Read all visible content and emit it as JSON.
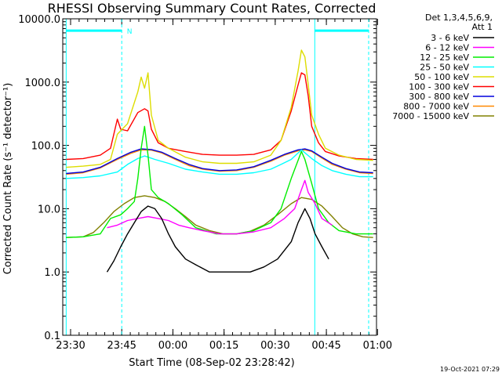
{
  "chart_data": {
    "type": "line",
    "title": "RHESSI Observing Summary Count Rates, Corrected",
    "xlabel": "Start Time (08-Sep-02 23:28:42)",
    "ylabel": "Corrected Count Rate (s⁻¹ detector⁻¹)",
    "yscale": "log",
    "ylim": [
      0.1,
      10000
    ],
    "xlim_minutes_from_start": [
      -1,
      91
    ],
    "xticks": [
      {
        "label": "23:30",
        "minutes": 1.3
      },
      {
        "label": "23:45",
        "minutes": 16.3
      },
      {
        "label": "00:00",
        "minutes": 31.3
      },
      {
        "label": "00:15",
        "minutes": 46.3
      },
      {
        "label": "00:30",
        "minutes": 61.3
      },
      {
        "label": "00:45",
        "minutes": 76.3
      },
      {
        "label": "01:00",
        "minutes": 91.3
      }
    ],
    "yticks": [
      "0.1",
      "1.0",
      "10.0",
      "100.0",
      "1000.0",
      "10000.0"
    ],
    "legend_header": [
      "Det 1,3,4,5,6,9,",
      "Att 1"
    ],
    "legend_position": "right",
    "annotations": [
      {
        "text": "N",
        "x_minutes": 17.8,
        "y": 6500
      }
    ],
    "night_bars": [
      {
        "from": 0,
        "to": 16.3
      },
      {
        "from": 72.9,
        "to": 88.7
      }
    ],
    "vertical_markers": [
      {
        "x_minutes": 0,
        "style": "solid"
      },
      {
        "x_minutes": 16.3,
        "style": "dashed"
      },
      {
        "x_minutes": 72.9,
        "style": "solid"
      },
      {
        "x_minutes": 88.7,
        "style": "dashed"
      }
    ],
    "series": [
      {
        "name": "3 - 6 keV",
        "color": "#000000",
        "points": [
          [
            12,
            1
          ],
          [
            14,
            1.5
          ],
          [
            16,
            2.5
          ],
          [
            18,
            4
          ],
          [
            20,
            6
          ],
          [
            22,
            9
          ],
          [
            24,
            11
          ],
          [
            26,
            10
          ],
          [
            28,
            7
          ],
          [
            30,
            4
          ],
          [
            32,
            2.5
          ],
          [
            35,
            1.6
          ],
          [
            38,
            1.3
          ],
          [
            42,
            1
          ],
          [
            48,
            1
          ],
          [
            54,
            1
          ],
          [
            58,
            1.2
          ],
          [
            62,
            1.6
          ],
          [
            66,
            3
          ],
          [
            68,
            6
          ],
          [
            70,
            10
          ],
          [
            71.5,
            7
          ],
          [
            73,
            4
          ],
          [
            75,
            2.5
          ],
          [
            77,
            1.6
          ]
        ]
      },
      {
        "name": "6 - 12 keV",
        "color": "#ff00ff",
        "points": [
          [
            12,
            5
          ],
          [
            15,
            5.5
          ],
          [
            18,
            6.5
          ],
          [
            21,
            7
          ],
          [
            24,
            7.5
          ],
          [
            27,
            7
          ],
          [
            30,
            6.5
          ],
          [
            33,
            5.5
          ],
          [
            36,
            5
          ],
          [
            40,
            4.5
          ],
          [
            45,
            4
          ],
          [
            50,
            4
          ],
          [
            55,
            4.3
          ],
          [
            60,
            5
          ],
          [
            64,
            7
          ],
          [
            67,
            10
          ],
          [
            69,
            20
          ],
          [
            70,
            28
          ],
          [
            71,
            18
          ],
          [
            73,
            12
          ],
          [
            75,
            7
          ],
          [
            78,
            5.5
          ]
        ]
      },
      {
        "name": "12 - 25 keV",
        "color": "#00ee00",
        "points": [
          [
            0,
            3.5
          ],
          [
            5,
            3.6
          ],
          [
            10,
            4
          ],
          [
            13,
            7
          ],
          [
            16,
            8
          ],
          [
            18,
            10
          ],
          [
            20,
            13
          ],
          [
            21,
            30
          ],
          [
            22,
            90
          ],
          [
            23,
            200
          ],
          [
            24,
            70
          ],
          [
            25,
            20
          ],
          [
            27,
            15
          ],
          [
            30,
            12
          ],
          [
            34,
            8
          ],
          [
            38,
            5
          ],
          [
            44,
            4
          ],
          [
            50,
            4
          ],
          [
            55,
            4.5
          ],
          [
            60,
            6
          ],
          [
            63,
            10
          ],
          [
            66,
            30
          ],
          [
            69,
            80
          ],
          [
            70,
            60
          ],
          [
            72,
            25
          ],
          [
            74,
            10
          ],
          [
            77,
            6
          ],
          [
            80,
            4.5
          ],
          [
            85,
            4
          ],
          [
            90,
            4
          ]
        ]
      },
      {
        "name": "25 - 50 keV",
        "color": "#00ffff",
        "points": [
          [
            0,
            30
          ],
          [
            5,
            31
          ],
          [
            10,
            33
          ],
          [
            15,
            38
          ],
          [
            18,
            50
          ],
          [
            21,
            62
          ],
          [
            23,
            68
          ],
          [
            26,
            60
          ],
          [
            30,
            52
          ],
          [
            35,
            42
          ],
          [
            40,
            38
          ],
          [
            45,
            35
          ],
          [
            50,
            35
          ],
          [
            55,
            37
          ],
          [
            60,
            42
          ],
          [
            63,
            50
          ],
          [
            66,
            60
          ],
          [
            69,
            85
          ],
          [
            72,
            62
          ],
          [
            75,
            48
          ],
          [
            78,
            40
          ],
          [
            82,
            35
          ],
          [
            86,
            32
          ],
          [
            90,
            32
          ]
        ]
      },
      {
        "name": "50 - 100 keV",
        "color": "#dddd00",
        "points": [
          [
            0,
            45
          ],
          [
            5,
            47
          ],
          [
            10,
            50
          ],
          [
            13,
            60
          ],
          [
            15,
            150
          ],
          [
            18,
            220
          ],
          [
            21,
            700
          ],
          [
            22,
            1200
          ],
          [
            23,
            800
          ],
          [
            24,
            1400
          ],
          [
            25,
            300
          ],
          [
            27,
            120
          ],
          [
            30,
            90
          ],
          [
            35,
            65
          ],
          [
            40,
            55
          ],
          [
            45,
            52
          ],
          [
            50,
            52
          ],
          [
            55,
            55
          ],
          [
            60,
            70
          ],
          [
            63,
            120
          ],
          [
            66,
            400
          ],
          [
            68,
            1500
          ],
          [
            69,
            3200
          ],
          [
            70,
            2500
          ],
          [
            71,
            900
          ],
          [
            72,
            300
          ],
          [
            74,
            150
          ],
          [
            76,
            90
          ],
          [
            80,
            70
          ],
          [
            85,
            60
          ],
          [
            90,
            58
          ]
        ]
      },
      {
        "name": "100 - 300 keV",
        "color": "#ff0000",
        "points": [
          [
            0,
            60
          ],
          [
            5,
            62
          ],
          [
            10,
            70
          ],
          [
            13,
            90
          ],
          [
            15,
            260
          ],
          [
            16,
            180
          ],
          [
            18,
            170
          ],
          [
            21,
            330
          ],
          [
            23,
            380
          ],
          [
            24,
            350
          ],
          [
            25,
            180
          ],
          [
            27,
            110
          ],
          [
            30,
            90
          ],
          [
            35,
            80
          ],
          [
            40,
            72
          ],
          [
            45,
            70
          ],
          [
            50,
            70
          ],
          [
            55,
            72
          ],
          [
            60,
            85
          ],
          [
            63,
            120
          ],
          [
            66,
            350
          ],
          [
            68,
            900
          ],
          [
            69,
            1400
          ],
          [
            70,
            1300
          ],
          [
            71,
            600
          ],
          [
            72,
            200
          ],
          [
            74,
            110
          ],
          [
            76,
            80
          ],
          [
            80,
            68
          ],
          [
            85,
            62
          ],
          [
            90,
            60
          ]
        ]
      },
      {
        "name": "300 - 800 keV",
        "color": "#0000dd",
        "points": [
          [
            0,
            36
          ],
          [
            5,
            38
          ],
          [
            10,
            45
          ],
          [
            15,
            62
          ],
          [
            19,
            78
          ],
          [
            22,
            88
          ],
          [
            25,
            86
          ],
          [
            28,
            78
          ],
          [
            32,
            62
          ],
          [
            36,
            50
          ],
          [
            40,
            43
          ],
          [
            45,
            40
          ],
          [
            50,
            41
          ],
          [
            55,
            46
          ],
          [
            60,
            58
          ],
          [
            64,
            72
          ],
          [
            68,
            85
          ],
          [
            70,
            88
          ],
          [
            72,
            82
          ],
          [
            75,
            65
          ],
          [
            78,
            52
          ],
          [
            82,
            43
          ],
          [
            86,
            38
          ],
          [
            90,
            37
          ]
        ]
      },
      {
        "name": "800 - 7000 keV",
        "color": "#ff8800",
        "points": [
          [
            0,
            35
          ],
          [
            5,
            37
          ],
          [
            10,
            44
          ],
          [
            15,
            60
          ],
          [
            19,
            75
          ],
          [
            22,
            85
          ],
          [
            25,
            84
          ],
          [
            28,
            76
          ],
          [
            32,
            60
          ],
          [
            36,
            48
          ],
          [
            40,
            42
          ],
          [
            45,
            39
          ],
          [
            50,
            40
          ],
          [
            55,
            45
          ],
          [
            60,
            56
          ],
          [
            64,
            70
          ],
          [
            68,
            82
          ],
          [
            70,
            85
          ],
          [
            72,
            80
          ],
          [
            75,
            63
          ],
          [
            78,
            50
          ],
          [
            82,
            42
          ],
          [
            86,
            37
          ],
          [
            90,
            36
          ]
        ]
      },
      {
        "name": "7000 - 15000 keV",
        "color": "#808000",
        "points": [
          [
            0,
            3.5
          ],
          [
            5,
            3.6
          ],
          [
            8,
            4.2
          ],
          [
            11,
            6
          ],
          [
            14,
            9
          ],
          [
            17,
            12
          ],
          [
            20,
            15
          ],
          [
            23,
            16
          ],
          [
            26,
            15
          ],
          [
            29,
            13
          ],
          [
            32,
            10
          ],
          [
            35,
            7.5
          ],
          [
            38,
            5.5
          ],
          [
            42,
            4.5
          ],
          [
            46,
            4
          ],
          [
            50,
            4
          ],
          [
            54,
            4.4
          ],
          [
            58,
            5.5
          ],
          [
            62,
            8
          ],
          [
            66,
            12
          ],
          [
            69,
            15
          ],
          [
            72,
            14
          ],
          [
            75,
            11
          ],
          [
            78,
            7.5
          ],
          [
            81,
            5
          ],
          [
            84,
            4
          ],
          [
            87,
            3.6
          ],
          [
            90,
            3.5
          ]
        ]
      }
    ]
  },
  "footer": {
    "date_stamp": "19-Oct-2021 07:29"
  }
}
